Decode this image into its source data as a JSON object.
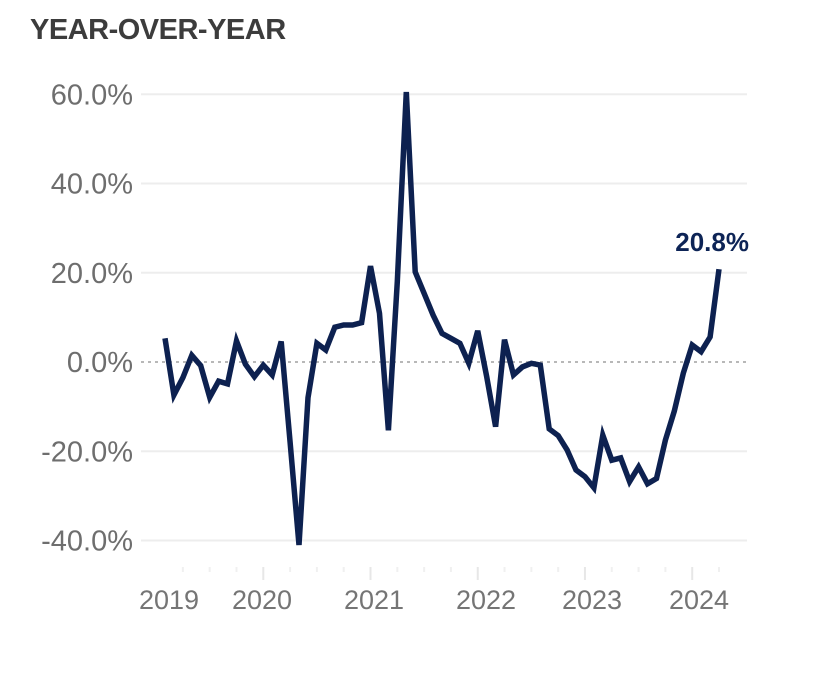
{
  "title": "YEAR-OVER-YEAR",
  "colors": {
    "line": "#0d2150",
    "annotation": "#0d2456",
    "title_text": "#3c3c3c",
    "axis_text": "#6e6e6e",
    "gridline": "#ededed",
    "zero_line_dotted": "#b8b8b8",
    "tick_mark": "#e7e7e7",
    "background": "#ffffff"
  },
  "chart_data": {
    "type": "line",
    "title": "YEAR-OVER-YEAR",
    "unit": "percent year-over-year change",
    "frequency": "monthly",
    "x_start_year": 2019,
    "points_per_year": 12,
    "x_year_labels": [
      "2019",
      "2020",
      "2021",
      "2022",
      "2023",
      "2024"
    ],
    "y_tick_values": [
      60,
      40,
      20,
      0,
      -20,
      -40
    ],
    "y_tick_labels": [
      "60.0%",
      "40.0%",
      "20.0%",
      "0.0%",
      "-20.0%",
      "-40.0%"
    ],
    "ylim": [
      -45,
      65
    ],
    "grid": "horizontal gridlines, dotted line at zero, quarterly tick marks on x-axis",
    "legend": "none",
    "last_value_label": "20.8%",
    "series": [
      {
        "name": "year-over-year-change",
        "values": [
          5.3,
          -7.4,
          -3.5,
          1.5,
          -0.8,
          -7.9,
          -4.3,
          -4.9,
          4.7,
          -0.5,
          -3.3,
          -0.7,
          -2.9,
          4.6,
          -18.0,
          -41.0,
          -8.0,
          4.2,
          2.7,
          7.8,
          8.3,
          8.3,
          8.8,
          21.5,
          10.9,
          -15.3,
          18.0,
          60.5,
          20.2,
          15.4,
          10.5,
          6.4,
          5.3,
          4.2,
          -0.3,
          7.0,
          -3.3,
          -14.5,
          5.0,
          -2.9,
          -1.1,
          -0.3,
          -0.7,
          -15.0,
          -16.5,
          -19.7,
          -24.2,
          -25.7,
          -28.2,
          -16.4,
          -22.0,
          -21.5,
          -26.8,
          -23.5,
          -27.3,
          -26.1,
          -17.5,
          -11.0,
          -2.5,
          3.8,
          2.3,
          5.6,
          20.8
        ]
      }
    ]
  }
}
